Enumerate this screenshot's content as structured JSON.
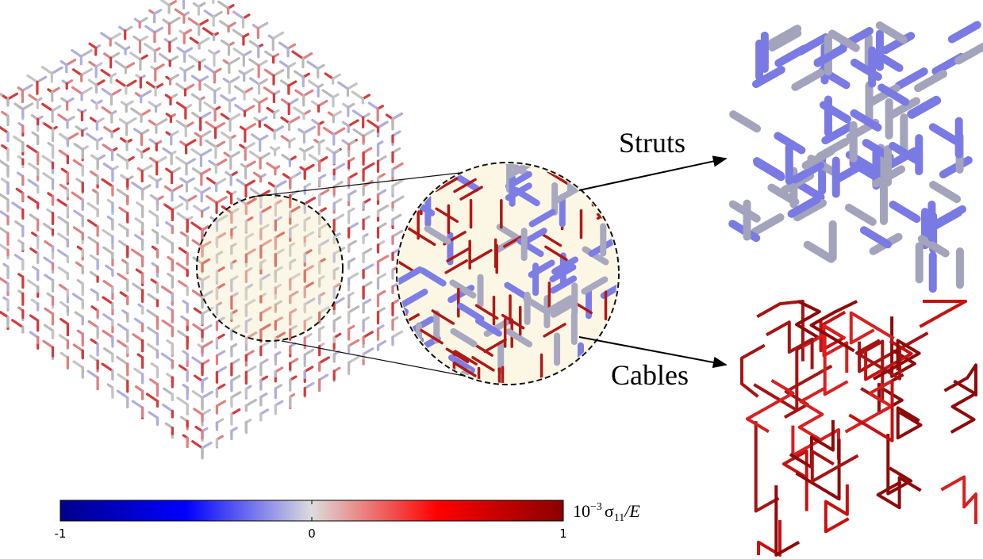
{
  "labels": {
    "struts": "Struts",
    "cables": "Cables"
  },
  "colorbar": {
    "range": [
      -1,
      1
    ],
    "ticks": [
      -1,
      0,
      1
    ],
    "colors": [
      "#00008b",
      "#0000ff",
      "#dcdcdc",
      "#ff0000",
      "#8b0000"
    ],
    "label": {
      "base": "10",
      "exponent": "−3",
      "symbol": "σ",
      "subscript": "11",
      "rest": "/E"
    }
  }
}
